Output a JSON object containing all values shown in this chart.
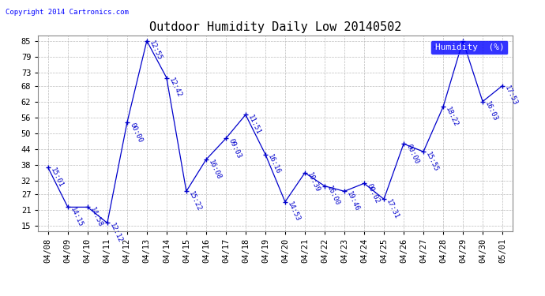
{
  "title": "Outdoor Humidity Daily Low 20140502",
  "copyright": "Copyright 2014 Cartronics.com",
  "legend_label": "Humidity  (%)",
  "x_labels": [
    "04/08",
    "04/09",
    "04/10",
    "04/11",
    "04/12",
    "04/13",
    "04/14",
    "04/15",
    "04/16",
    "04/17",
    "04/18",
    "04/19",
    "04/20",
    "04/21",
    "04/22",
    "04/23",
    "04/24",
    "04/25",
    "04/26",
    "04/27",
    "04/28",
    "04/29",
    "04/30",
    "05/01"
  ],
  "y_values": [
    37,
    22,
    22,
    16,
    54,
    85,
    71,
    28,
    40,
    48,
    57,
    42,
    24,
    35,
    30,
    28,
    31,
    25,
    46,
    43,
    60,
    85,
    62,
    68
  ],
  "point_labels": [
    "15:01",
    "14:15",
    "14:58",
    "12:12",
    "00:00",
    "12:55",
    "12:42",
    "15:22",
    "16:08",
    "09:03",
    "11:51",
    "16:16",
    "14:53",
    "10:39",
    "16:00",
    "19:46",
    "00:02",
    "17:31",
    "00:00",
    "15:55",
    "18:22",
    "",
    "16:03",
    "17:53"
  ],
  "line_color": "#0000cc",
  "marker_color": "#0000cc",
  "background_color": "#ffffff",
  "grid_color": "#bbbbbb",
  "yticks": [
    15,
    21,
    27,
    32,
    38,
    44,
    50,
    56,
    62,
    68,
    73,
    79,
    85
  ],
  "ylim": [
    13,
    87
  ],
  "title_fontsize": 11,
  "label_fontsize": 6.5,
  "copyright_fontsize": 6.5,
  "legend_fontsize": 8,
  "tick_fontsize": 7.5
}
